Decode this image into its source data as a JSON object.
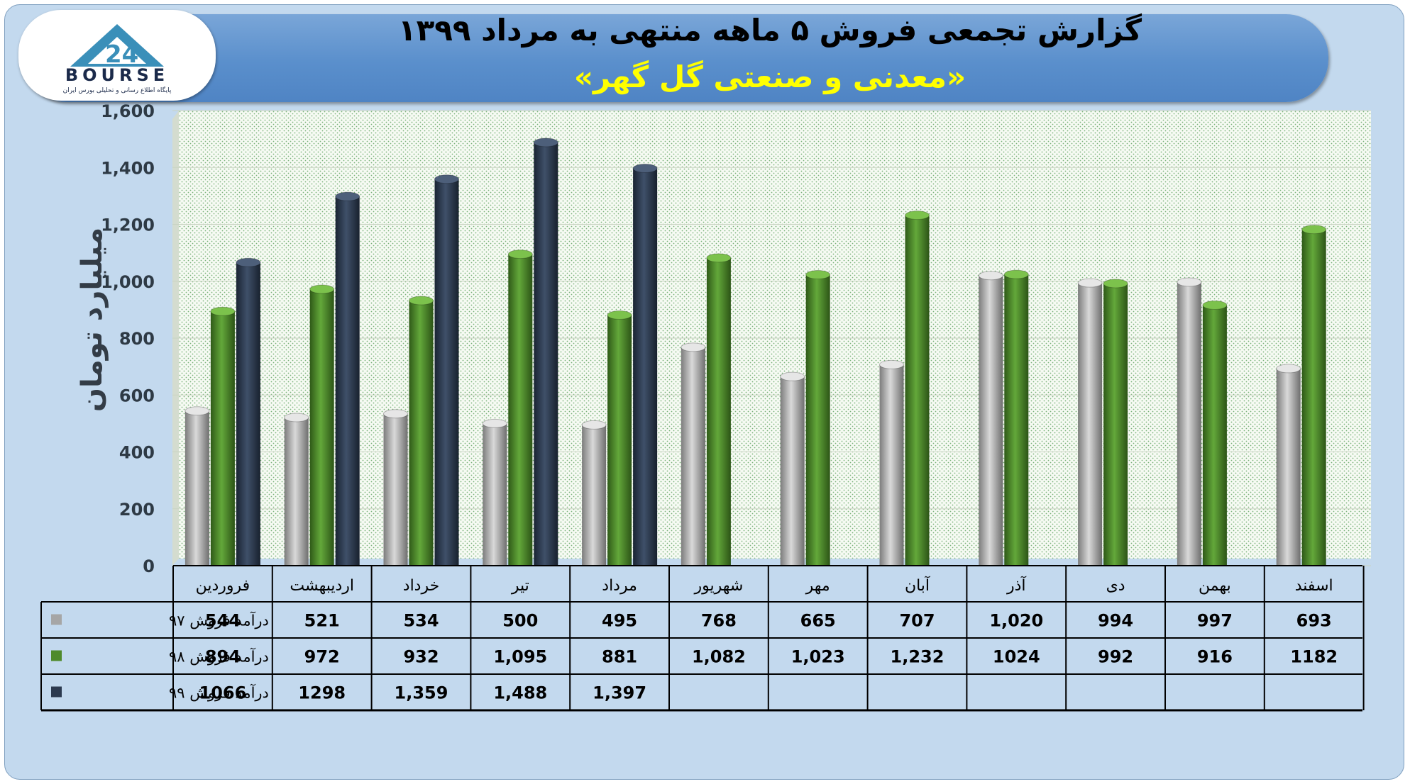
{
  "header": {
    "title": "گزارش تجمعی فروش ۵ ماهه منتهی به مرداد ۱۳۹۹",
    "subtitle": "«معدنی و صنعتی گل گهر»"
  },
  "logo": {
    "brand": "BOURSE",
    "tagline": "پایگاه اطلاع رسانی و تحلیلی بورس ایران"
  },
  "colors": {
    "series97": "#a6a6a6",
    "series98": "#4f8a2b",
    "series99": "#2c3a4f",
    "plot_background": "#f4f9f1",
    "frame": "#c3d9ee",
    "banner": "#5a8fcc"
  },
  "chart_data": {
    "type": "bar",
    "title": "گزارش تجمعی فروش ۵ ماهه منتهی به مرداد ۱۳۹۹",
    "subtitle": "«معدنی و صنعتی گل گهر»",
    "ylabel": "میلیارد تومان",
    "xlabel": "",
    "ylim": [
      0,
      1600
    ],
    "yticks": [
      "0",
      "200",
      "400",
      "600",
      "800",
      "1,000",
      "1,200",
      "1,400",
      "1,600"
    ],
    "ytick_values": [
      0,
      200,
      400,
      600,
      800,
      1000,
      1200,
      1400,
      1600
    ],
    "grid": true,
    "legend": "data-table-left",
    "categories": [
      "فروردین",
      "اردیبهشت",
      "خرداد",
      "تیر",
      "مرداد",
      "شهریور",
      "مهر",
      "آبان",
      "آذر",
      "دی",
      "بهمن",
      "اسفند"
    ],
    "series": [
      {
        "name": "درآمد فروش ۹۷",
        "values": [
          544,
          521,
          534,
          500,
          495,
          768,
          665,
          707,
          1020,
          994,
          997,
          693
        ],
        "labels": [
          "544",
          "521",
          "534",
          "500",
          "495",
          "768",
          "665",
          "707",
          "1,020",
          "994",
          "997",
          "693"
        ]
      },
      {
        "name": "درآمد فروش ۹۸",
        "values": [
          894,
          972,
          932,
          1095,
          881,
          1082,
          1023,
          1232,
          1024,
          992,
          916,
          1182
        ],
        "labels": [
          "894",
          "972",
          "932",
          "1,095",
          "881",
          "1,082",
          "1,023",
          "1,232",
          "1024",
          "992",
          "916",
          "1182"
        ]
      },
      {
        "name": "درآمد فروش ۹۹",
        "values": [
          1066,
          1298,
          1359,
          1488,
          1397,
          null,
          null,
          null,
          null,
          null,
          null,
          null
        ],
        "labels": [
          "1066",
          "1298",
          "1,359",
          "1,488",
          "1,397",
          "",
          "",
          "",
          "",
          "",
          "",
          ""
        ]
      }
    ]
  }
}
